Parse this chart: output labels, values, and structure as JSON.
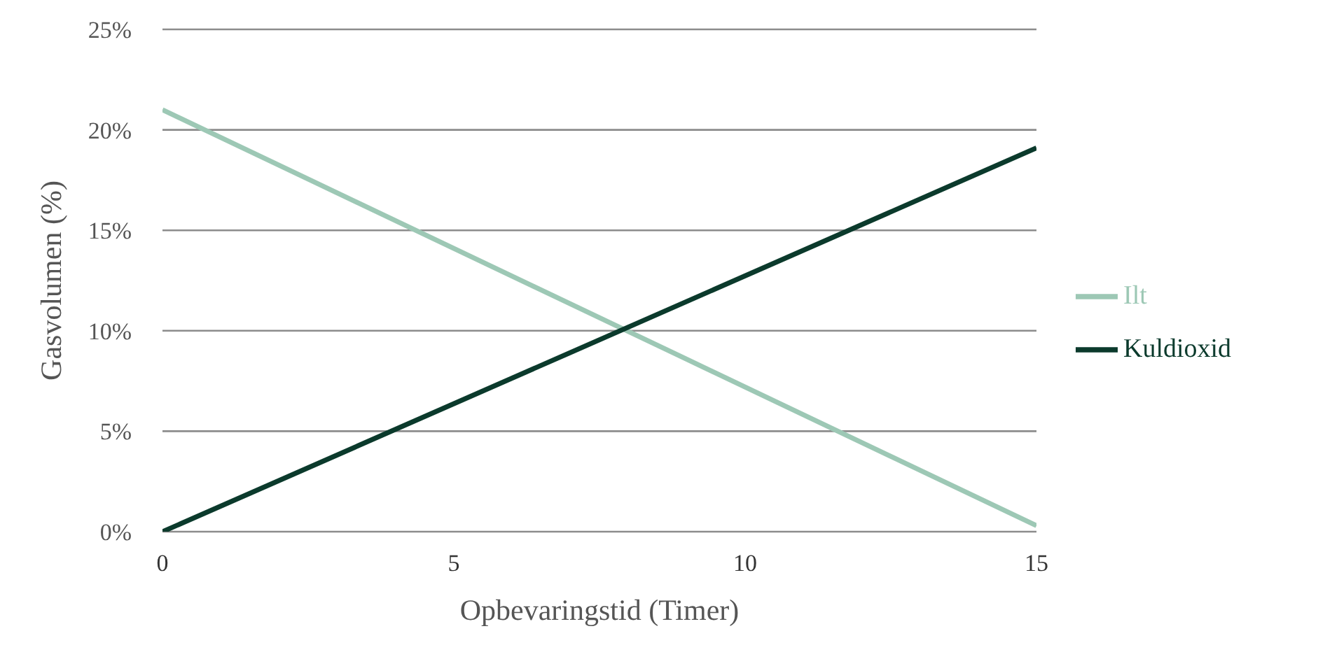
{
  "chart_data": {
    "type": "line",
    "xlabel": "Opbevaringstid (Timer)",
    "ylabel": "Gasvolumen (%)",
    "xlim": [
      0,
      15
    ],
    "xticks": [
      0,
      5,
      10,
      15
    ],
    "ylim": [
      0,
      25
    ],
    "yticks": [
      {
        "value": 0,
        "label": "0%"
      },
      {
        "value": 5,
        "label": "5%"
      },
      {
        "value": 10,
        "label": "10%"
      },
      {
        "value": 15,
        "label": "15%"
      },
      {
        "value": 20,
        "label": "20%"
      },
      {
        "value": 25,
        "label": "25%"
      }
    ],
    "x": [
      0,
      15
    ],
    "grid": "y",
    "legend": "right",
    "marker": "none",
    "line_style": "solid",
    "series": [
      {
        "name": "Ilt",
        "color": "#9dc8b5",
        "values": [
          21,
          0.3
        ]
      },
      {
        "name": "Kuldioxid",
        "color": "#0b3a2c",
        "values": [
          0,
          19.1
        ]
      }
    ]
  }
}
